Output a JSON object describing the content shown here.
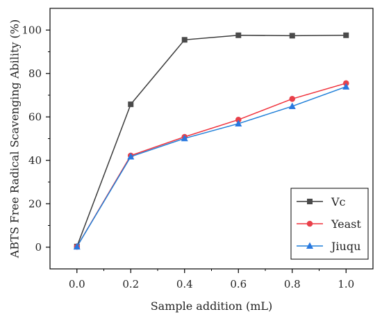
{
  "chart_data": {
    "type": "line",
    "title": "",
    "xlabel": "Sample addition (mL)",
    "ylabel": "ABTS Free Radical Scavenging Ability (%)",
    "xlim": [
      -0.1,
      1.1
    ],
    "ylim": [
      -10,
      110
    ],
    "xticks": [
      0.0,
      0.2,
      0.4,
      0.6,
      0.8,
      1.0
    ],
    "xtick_labels": [
      "0.0",
      "0.2",
      "0.4",
      "0.6",
      "0.8",
      "1.0"
    ],
    "yticks": [
      0,
      20,
      40,
      60,
      80,
      100
    ],
    "ytick_labels": [
      "0",
      "20",
      "40",
      "60",
      "80",
      "100"
    ],
    "grid": false,
    "legend_position": "bottom-right",
    "x": [
      0.0,
      0.2,
      0.4,
      0.6,
      0.8,
      1.0
    ],
    "series": [
      {
        "name": "Vc",
        "values": [
          0.3,
          65.8,
          95.5,
          97.6,
          97.4,
          97.6
        ],
        "line_color": "#3a3a3a",
        "marker_color": "#4a4a4a",
        "marker": "square"
      },
      {
        "name": "Yeast",
        "values": [
          0.2,
          42.2,
          50.8,
          58.7,
          68.3,
          75.5
        ],
        "line_color": "#f0323c",
        "marker_color": "#e8404a",
        "marker": "circle"
      },
      {
        "name": "Jiuqu",
        "values": [
          0.2,
          41.7,
          50.1,
          56.9,
          64.9,
          73.9
        ],
        "line_color": "#1f7fd8",
        "marker_color": "#2878e0",
        "marker": "triangle"
      }
    ]
  }
}
